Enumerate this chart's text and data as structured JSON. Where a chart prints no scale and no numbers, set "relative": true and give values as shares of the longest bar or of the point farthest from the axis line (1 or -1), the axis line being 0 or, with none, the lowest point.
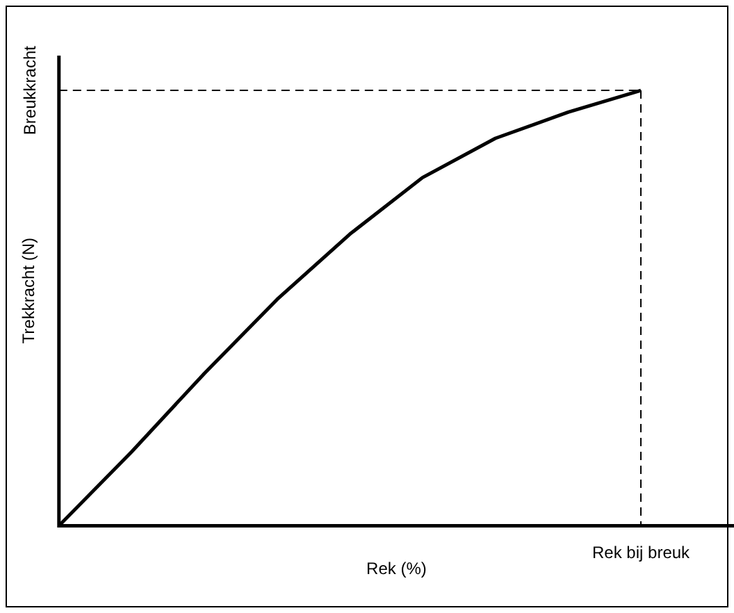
{
  "chart_data": {
    "type": "line",
    "relative": true,
    "xlabel": "Rek (%)",
    "ylabel": "Trekkracht (N)",
    "categories": [
      null,
      null,
      null,
      null,
      null,
      null,
      null,
      null,
      null
    ],
    "series": [
      {
        "color": "#000000",
        "values": [
          0,
          0.17,
          0.35,
          0.52,
          0.67,
          0.8,
          0.89,
          0.95,
          1
        ]
      }
    ],
    "annotations": [
      "Breukkracht",
      "Rek bij breuk"
    ],
    "grid": false,
    "legend": false,
    "marker": "none",
    "line_style": "solid"
  }
}
